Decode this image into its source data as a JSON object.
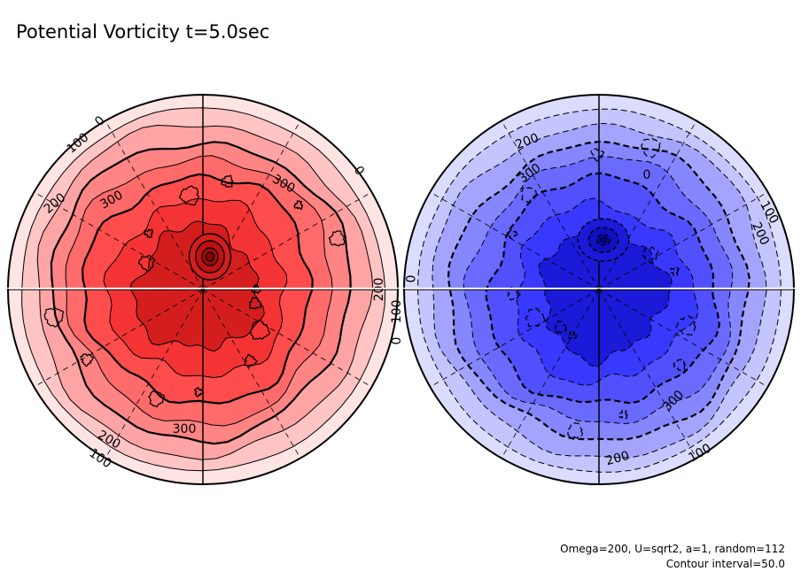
{
  "title": "Potential Vorticity t=5.0sec",
  "footer": {
    "line1": "Omega=200, U=sqrt2, a=1, random=112",
    "line2": "Contour interval=50.0"
  },
  "hemispheres": [
    {
      "name": "north",
      "line_style": "solid",
      "fill_colors": [
        "#ffe4e4",
        "#ffc4c4",
        "#ffa4a4",
        "#ff8484",
        "#ff6a6a",
        "#ff4c4c",
        "#f43434",
        "#d41e1e"
      ],
      "contour_labels": [
        {
          "text": "0"
        },
        {
          "text": "100"
        },
        {
          "text": "200"
        },
        {
          "text": "300"
        },
        {
          "text": "300"
        },
        {
          "text": "0"
        },
        {
          "text": "200"
        },
        {
          "text": "100"
        },
        {
          "text": "0"
        },
        {
          "text": "200"
        },
        {
          "text": "100"
        },
        {
          "text": "300"
        }
      ]
    },
    {
      "name": "south",
      "line_style": "dashed",
      "fill_colors": [
        "#dcdcff",
        "#c4c4ff",
        "#a4a4ff",
        "#8686ff",
        "#6a6aff",
        "#5050ff",
        "#3838ff",
        "#1a1ad8"
      ],
      "contour_labels": [
        {
          "text": "200"
        },
        {
          "text": "300"
        },
        {
          "text": "0"
        },
        {
          "text": "100"
        },
        {
          "text": "200"
        },
        {
          "text": "0"
        },
        {
          "text": "300"
        },
        {
          "text": "200"
        },
        {
          "text": "100"
        }
      ]
    }
  ]
}
